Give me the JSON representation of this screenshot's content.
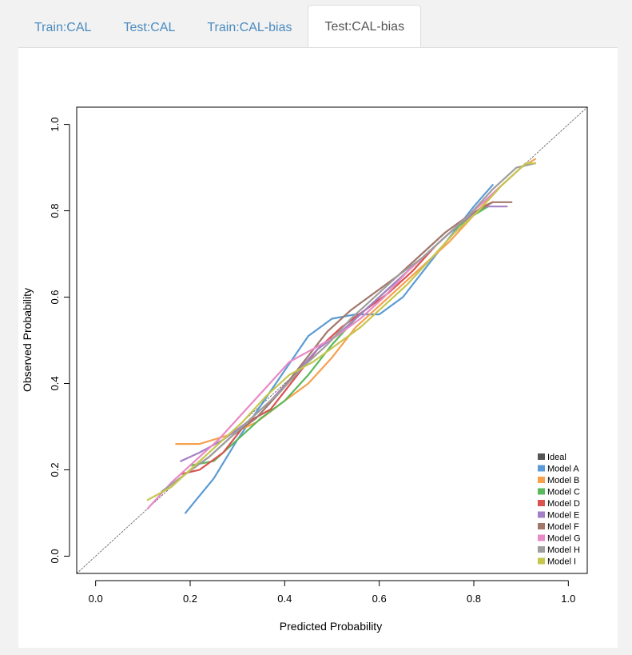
{
  "tabs": [
    {
      "label": "Train:CAL",
      "active": false
    },
    {
      "label": "Test:CAL",
      "active": false
    },
    {
      "label": "Train:CAL-bias",
      "active": false
    },
    {
      "label": "Test:CAL-bias",
      "active": true
    }
  ],
  "chart_data": {
    "type": "line",
    "title": "",
    "xlabel": "Predicted Probability",
    "ylabel": "Observed  Probability",
    "xlim": [
      -0.04,
      1.04
    ],
    "ylim": [
      -0.04,
      1.04
    ],
    "xticks": [
      0.0,
      0.2,
      0.4,
      0.6,
      0.8,
      1.0
    ],
    "xtick_labels": [
      "0.0",
      "0.2",
      "0.4",
      "0.6",
      "0.8",
      "1.0"
    ],
    "yticks": [
      0.0,
      0.2,
      0.4,
      0.6,
      0.8,
      1.0
    ],
    "ytick_labels": [
      "0.0",
      "0.2",
      "0.4",
      "0.6",
      "0.8",
      "1.0"
    ],
    "legend_position": "bottom-right",
    "series": [
      {
        "name": "Ideal",
        "color": "#555555",
        "style": "dotted",
        "x": [
          -0.04,
          1.04
        ],
        "y": [
          -0.04,
          1.04
        ]
      },
      {
        "name": "Model A",
        "color": "#5b9bd5",
        "x": [
          0.19,
          0.25,
          0.3,
          0.35,
          0.4,
          0.45,
          0.5,
          0.55,
          0.6,
          0.65,
          0.7,
          0.75,
          0.8,
          0.84
        ],
        "y": [
          0.1,
          0.18,
          0.27,
          0.35,
          0.43,
          0.51,
          0.55,
          0.56,
          0.56,
          0.6,
          0.67,
          0.74,
          0.81,
          0.86
        ]
      },
      {
        "name": "Model B",
        "color": "#f7a14f",
        "x": [
          0.17,
          0.22,
          0.28,
          0.34,
          0.4,
          0.45,
          0.5,
          0.55,
          0.6,
          0.65,
          0.7,
          0.75,
          0.8,
          0.85,
          0.9,
          0.93
        ],
        "y": [
          0.26,
          0.26,
          0.28,
          0.31,
          0.36,
          0.4,
          0.46,
          0.53,
          0.58,
          0.63,
          0.68,
          0.73,
          0.79,
          0.85,
          0.9,
          0.92
        ]
      },
      {
        "name": "Model C",
        "color": "#5cb85c",
        "x": [
          0.2,
          0.25,
          0.3,
          0.35,
          0.4,
          0.45,
          0.5,
          0.55,
          0.6,
          0.65,
          0.7,
          0.75,
          0.8,
          0.83
        ],
        "y": [
          0.21,
          0.22,
          0.27,
          0.32,
          0.36,
          0.42,
          0.49,
          0.55,
          0.6,
          0.65,
          0.7,
          0.75,
          0.79,
          0.81
        ]
      },
      {
        "name": "Model D",
        "color": "#d9534f",
        "x": [
          0.18,
          0.22,
          0.27,
          0.32,
          0.37,
          0.42,
          0.47,
          0.52,
          0.57,
          0.62,
          0.67,
          0.72,
          0.77,
          0.82,
          0.84
        ],
        "y": [
          0.19,
          0.2,
          0.24,
          0.31,
          0.34,
          0.41,
          0.48,
          0.53,
          0.57,
          0.61,
          0.66,
          0.72,
          0.77,
          0.81,
          0.82
        ]
      },
      {
        "name": "Model E",
        "color": "#a57fc5",
        "x": [
          0.18,
          0.22,
          0.27,
          0.32,
          0.37,
          0.42,
          0.47,
          0.52,
          0.57,
          0.62,
          0.67,
          0.72,
          0.77,
          0.82,
          0.87
        ],
        "y": [
          0.22,
          0.24,
          0.27,
          0.31,
          0.36,
          0.42,
          0.48,
          0.52,
          0.57,
          0.62,
          0.67,
          0.72,
          0.77,
          0.81,
          0.81
        ]
      },
      {
        "name": "Model F",
        "color": "#a1786b",
        "x": [
          0.19,
          0.24,
          0.29,
          0.34,
          0.39,
          0.44,
          0.49,
          0.54,
          0.59,
          0.64,
          0.69,
          0.74,
          0.79,
          0.84,
          0.88
        ],
        "y": [
          0.19,
          0.23,
          0.28,
          0.32,
          0.38,
          0.45,
          0.52,
          0.57,
          0.61,
          0.65,
          0.7,
          0.75,
          0.79,
          0.82,
          0.82
        ]
      },
      {
        "name": "Model G",
        "color": "#e88ac5",
        "x": [
          0.11,
          0.16,
          0.21,
          0.26,
          0.31,
          0.36,
          0.41,
          0.46,
          0.51,
          0.56,
          0.61,
          0.66,
          0.71,
          0.76,
          0.81,
          0.86,
          0.91
        ],
        "y": [
          0.11,
          0.17,
          0.22,
          0.27,
          0.33,
          0.39,
          0.45,
          0.48,
          0.51,
          0.55,
          0.6,
          0.66,
          0.71,
          0.76,
          0.81,
          0.86,
          0.91
        ]
      },
      {
        "name": "Model H",
        "color": "#9e9e9e",
        "x": [
          0.14,
          0.19,
          0.24,
          0.29,
          0.34,
          0.39,
          0.44,
          0.49,
          0.54,
          0.59,
          0.64,
          0.69,
          0.74,
          0.79,
          0.84,
          0.89,
          0.93
        ],
        "y": [
          0.15,
          0.19,
          0.23,
          0.28,
          0.33,
          0.38,
          0.44,
          0.49,
          0.55,
          0.6,
          0.65,
          0.69,
          0.74,
          0.79,
          0.85,
          0.9,
          0.91
        ]
      },
      {
        "name": "Model I",
        "color": "#c5c64f",
        "x": [
          0.11,
          0.16,
          0.21,
          0.26,
          0.31,
          0.36,
          0.41,
          0.46,
          0.51,
          0.56,
          0.61,
          0.66,
          0.71,
          0.76,
          0.81,
          0.86,
          0.91,
          0.93
        ],
        "y": [
          0.13,
          0.16,
          0.21,
          0.26,
          0.31,
          0.37,
          0.42,
          0.45,
          0.49,
          0.53,
          0.58,
          0.63,
          0.69,
          0.75,
          0.8,
          0.86,
          0.91,
          0.91
        ]
      }
    ]
  }
}
